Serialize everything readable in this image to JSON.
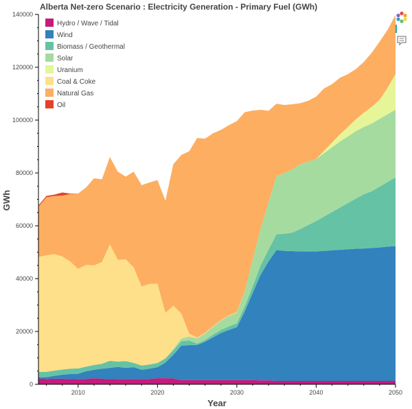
{
  "chart_data": {
    "type": "area",
    "stacked": true,
    "title": "Alberta Net-zero Scenario : Electricity Generation - Primary Fuel (GWh)",
    "xlabel": "Year",
    "ylabel": "GWh",
    "xlim": [
      2005,
      2050
    ],
    "ylim": [
      0,
      140000
    ],
    "xticks": [
      2010,
      2020,
      2030,
      2040,
      2050
    ],
    "yticks": [
      0,
      20000,
      40000,
      60000,
      80000,
      100000,
      120000,
      140000
    ],
    "grid": false,
    "legend_position": "top-left",
    "x": [
      2005,
      2006,
      2007,
      2008,
      2009,
      2010,
      2011,
      2012,
      2013,
      2014,
      2015,
      2016,
      2017,
      2018,
      2019,
      2020,
      2021,
      2022,
      2023,
      2024,
      2025,
      2026,
      2027,
      2028,
      2029,
      2030,
      2031,
      2032,
      2033,
      2034,
      2035,
      2036,
      2037,
      2038,
      2039,
      2040,
      2041,
      2042,
      2043,
      2044,
      2045,
      2046,
      2047,
      2048,
      2049,
      2050
    ],
    "series": [
      {
        "name": "Hydro / Wave / Tidal",
        "color": "#c51b7d",
        "values": [
          2200,
          2000,
          2100,
          2100,
          1900,
          2000,
          2000,
          2300,
          2100,
          1900,
          2000,
          2000,
          2000,
          2000,
          2000,
          2300,
          2300,
          2200,
          1600,
          1600,
          1600,
          1600,
          1600,
          1600,
          1600,
          1600,
          1600,
          1600,
          1500,
          1500,
          1300,
          1300,
          1300,
          1300,
          1300,
          1300,
          1300,
          1300,
          1300,
          1300,
          1300,
          1300,
          1300,
          1300,
          1300,
          1300
        ]
      },
      {
        "name": "Wind",
        "color": "#3182bd",
        "values": [
          500,
          700,
          1100,
          1500,
          2000,
          2000,
          2900,
          3200,
          3800,
          4300,
          4600,
          4200,
          4500,
          3500,
          3900,
          4200,
          5900,
          9000,
          13000,
          13200,
          13300,
          14500,
          16200,
          17800,
          19000,
          20000,
          26000,
          33000,
          40000,
          45000,
          49500,
          49200,
          49100,
          49000,
          49000,
          49000,
          49200,
          49400,
          49600,
          49800,
          50000,
          50100,
          50300,
          50500,
          50800,
          51000
        ]
      },
      {
        "name": "Biomass / Geothermal",
        "color": "#66c2a5",
        "values": [
          2000,
          2000,
          2000,
          2000,
          2000,
          2000,
          1800,
          1800,
          1900,
          2700,
          2000,
          2600,
          1600,
          1600,
          1600,
          1600,
          1600,
          1700,
          1700,
          1800,
          500,
          700,
          1000,
          1200,
          1300,
          1500,
          1800,
          2500,
          3500,
          4500,
          6000,
          6500,
          7000,
          8500,
          10000,
          11500,
          13000,
          14500,
          16000,
          17500,
          19000,
          20500,
          21500,
          23000,
          24500,
          26000
        ]
      },
      {
        "name": "Solar",
        "color": "#a6dba0",
        "values": [
          0,
          0,
          0,
          0,
          0,
          0,
          0,
          0,
          0,
          0,
          0,
          0,
          0,
          0,
          0,
          0,
          0,
          500,
          1000,
          1500,
          2000,
          2500,
          3000,
          3500,
          4000,
          4000,
          6000,
          10000,
          14000,
          18000,
          22000,
          23000,
          24000,
          24500,
          24000,
          23500,
          24000,
          24500,
          25000,
          25200,
          25500,
          25500,
          25600,
          25700,
          25600,
          25700
        ]
      },
      {
        "name": "Uranium",
        "color": "#e6f598",
        "values": [
          0,
          0,
          0,
          0,
          0,
          0,
          0,
          0,
          0,
          0,
          0,
          0,
          0,
          0,
          0,
          0,
          0,
          0,
          0,
          0,
          0,
          0,
          0,
          0,
          0,
          0,
          0,
          0,
          0,
          0,
          0,
          0,
          0,
          0,
          0,
          0,
          900,
          1800,
          2700,
          3600,
          4500,
          5400,
          6300,
          7200,
          10000,
          13500
        ]
      },
      {
        "name": "Coal & Coke",
        "color": "#fee08b",
        "values": [
          43500,
          44100,
          44100,
          42800,
          40600,
          37700,
          38500,
          37700,
          38500,
          44100,
          38500,
          38500,
          36200,
          29900,
          30500,
          30000,
          17200,
          16400,
          9500,
          1100,
          300,
          200,
          200,
          200,
          200,
          200,
          0,
          0,
          0,
          0,
          0,
          0,
          0,
          0,
          0,
          0,
          0,
          0,
          0,
          0,
          0,
          0,
          0,
          0,
          0,
          0
        ]
      },
      {
        "name": "Natural Gas",
        "color": "#fdae61",
        "values": [
          19000,
          22000,
          22000,
          23000,
          25500,
          28500,
          29300,
          33000,
          31300,
          33000,
          33400,
          31300,
          36200,
          38400,
          38400,
          39200,
          42500,
          53500,
          60000,
          69000,
          75500,
          73500,
          73000,
          72000,
          72000,
          72300,
          67600,
          56500,
          44900,
          34500,
          27400,
          25700,
          24600,
          23100,
          23000,
          23600,
          23600,
          22100,
          21400,
          20000,
          19000,
          19200,
          20500,
          22000,
          22000,
          22300
        ]
      },
      {
        "name": "Oil",
        "color": "#e6402a",
        "values": [
          500,
          500,
          500,
          1200,
          200,
          0,
          0,
          0,
          0,
          0,
          0,
          0,
          0,
          0,
          0,
          0,
          0,
          0,
          0,
          0,
          0,
          0,
          0,
          0,
          0,
          0,
          0,
          0,
          0,
          0,
          0,
          0,
          0,
          0,
          0,
          0,
          0,
          0,
          0,
          0,
          0,
          0,
          0,
          0,
          0,
          0
        ]
      }
    ]
  },
  "toolbar": {
    "logo_icon": "bokeh-logo-icon",
    "hover_icon": "hover-tool-icon"
  }
}
